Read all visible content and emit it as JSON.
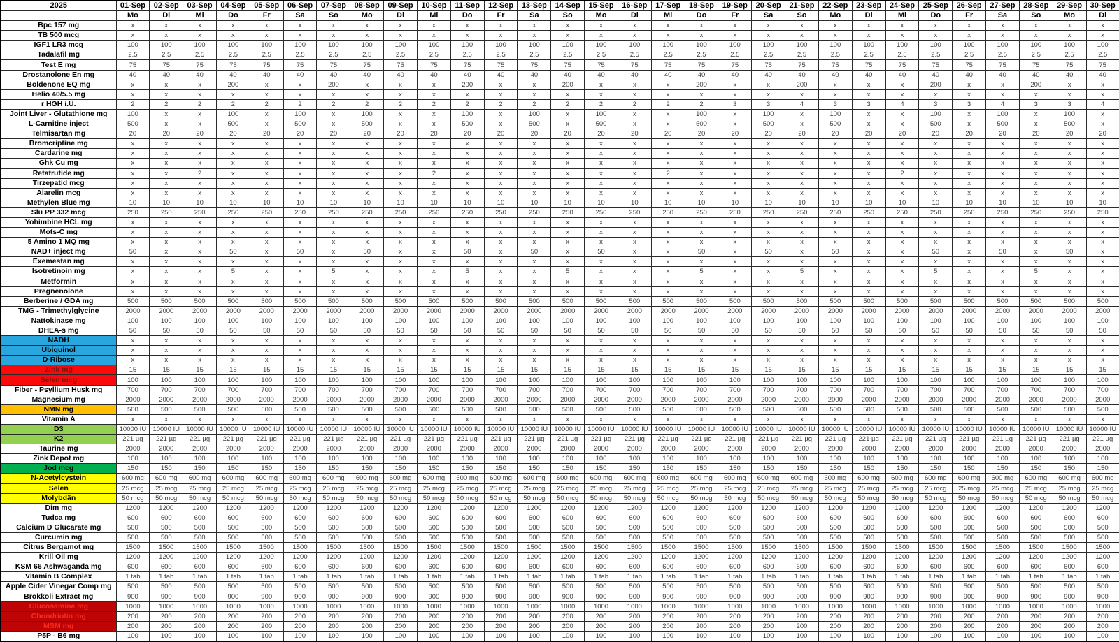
{
  "sheet": {
    "year_label": "2025",
    "columns": [
      {
        "date": "01-Sep",
        "day": "Mo"
      },
      {
        "date": "02-Sep",
        "day": "Di"
      },
      {
        "date": "03-Sep",
        "day": "Mi"
      },
      {
        "date": "04-Sep",
        "day": "Do"
      },
      {
        "date": "05-Sep",
        "day": "Fr"
      },
      {
        "date": "06-Sep",
        "day": "Sa"
      },
      {
        "date": "07-Sep",
        "day": "So"
      },
      {
        "date": "08-Sep",
        "day": "Mo"
      },
      {
        "date": "09-Sep",
        "day": "Di"
      },
      {
        "date": "10-Sep",
        "day": "Mi"
      },
      {
        "date": "11-Sep",
        "day": "Do"
      },
      {
        "date": "12-Sep",
        "day": "Fr"
      },
      {
        "date": "13-Sep",
        "day": "Sa"
      },
      {
        "date": "14-Sep",
        "day": "So"
      },
      {
        "date": "15-Sep",
        "day": "Mo"
      },
      {
        "date": "16-Sep",
        "day": "Di"
      },
      {
        "date": "17-Sep",
        "day": "Mi"
      },
      {
        "date": "18-Sep",
        "day": "Do"
      },
      {
        "date": "19-Sep",
        "day": "Fr"
      },
      {
        "date": "20-Sep",
        "day": "Sa"
      },
      {
        "date": "21-Sep",
        "day": "So"
      },
      {
        "date": "22-Sep",
        "day": "Mo"
      },
      {
        "date": "23-Sep",
        "day": "Di"
      },
      {
        "date": "24-Sep",
        "day": "Mi"
      },
      {
        "date": "25-Sep",
        "day": "Do"
      },
      {
        "date": "26-Sep",
        "day": "Fr"
      },
      {
        "date": "27-Sep",
        "day": "Sa"
      },
      {
        "date": "28-Sep",
        "day": "So"
      },
      {
        "date": "29-Sep",
        "day": "Mo"
      },
      {
        "date": "30-Sep",
        "day": "Di"
      }
    ],
    "rows": [
      {
        "label": "Bpc 157 mg",
        "all": "x"
      },
      {
        "label": "TB 500 mcg",
        "all": "x"
      },
      {
        "label": "IGF1 LR3 mcg",
        "all": "100"
      },
      {
        "label": "Tadalafil mg",
        "all": "2.5"
      },
      {
        "label": "Test E mg",
        "all": "75"
      },
      {
        "label": "Drostanolone En mg",
        "all": "40"
      },
      {
        "label": "Boldenone EQ mg",
        "values": [
          "x",
          "x",
          "x",
          "200",
          "x",
          "x",
          "200",
          "x",
          "x",
          "x",
          "200",
          "x",
          "x",
          "200",
          "x",
          "x",
          "x",
          "200",
          "x",
          "x",
          "200",
          "x",
          "x",
          "x",
          "200",
          "x",
          "x",
          "200",
          "x",
          "x"
        ]
      },
      {
        "label": "Helio 40/5.5 mg",
        "all": "x"
      },
      {
        "label": "r HGH i.U.",
        "values": [
          "2",
          "2",
          "2",
          "2",
          "2",
          "2",
          "2",
          "2",
          "2",
          "2",
          "2",
          "2",
          "2",
          "2",
          "2",
          "2",
          "2",
          "2",
          "3",
          "3",
          "4",
          "3",
          "3",
          "4",
          "3",
          "3",
          "4",
          "3",
          "3",
          "4"
        ]
      },
      {
        "label": "Joint Liver - Glutathione mg",
        "values": [
          "100",
          "x",
          "x",
          "100",
          "x",
          "100",
          "x",
          "100",
          "x",
          "x",
          "100",
          "x",
          "100",
          "x",
          "100",
          "x",
          "x",
          "100",
          "x",
          "100",
          "x",
          "100",
          "x",
          "x",
          "100",
          "x",
          "100",
          "x",
          "100",
          "x"
        ]
      },
      {
        "label": "L-Carnitine inject",
        "values": [
          "500",
          "x",
          "x",
          "500",
          "x",
          "500",
          "x",
          "500",
          "x",
          "x",
          "500",
          "x",
          "500",
          "x",
          "500",
          "x",
          "x",
          "500",
          "x",
          "500",
          "x",
          "500",
          "x",
          "x",
          "500",
          "x",
          "500",
          "x",
          "500",
          "x"
        ]
      },
      {
        "label": "Telmisartan mg",
        "all": "20"
      },
      {
        "label": "Bromcriptine mg",
        "all": "x"
      },
      {
        "label": "Cardarine mg",
        "all": "x"
      },
      {
        "label": "Ghk Cu mg",
        "all": "x"
      },
      {
        "label": "Retatrutide mg",
        "values": [
          "x",
          "x",
          "2",
          "x",
          "x",
          "x",
          "x",
          "x",
          "x",
          "2",
          "x",
          "x",
          "x",
          "x",
          "x",
          "x",
          "2",
          "x",
          "x",
          "x",
          "x",
          "x",
          "x",
          "2",
          "x",
          "x",
          "x",
          "x",
          "x",
          "x"
        ]
      },
      {
        "label": "Tirzepatid mcg",
        "all": "x"
      },
      {
        "label": "Alarelin mcg",
        "all": "x"
      },
      {
        "label": "Methylen Blue mg",
        "all": "10"
      },
      {
        "label": "Slu PP 332 mcg",
        "all": "250"
      },
      {
        "label": "Yohimbine HCL mg",
        "all": "x"
      },
      {
        "label": "Mots-C mg",
        "all": "x"
      },
      {
        "label": "5 Amino 1 MQ mg",
        "all": "x"
      },
      {
        "label": "NAD+ inject mg",
        "values": [
          "50",
          "x",
          "x",
          "50",
          "x",
          "50",
          "x",
          "50",
          "x",
          "x",
          "50",
          "x",
          "50",
          "x",
          "50",
          "x",
          "x",
          "50",
          "x",
          "50",
          "x",
          "50",
          "x",
          "x",
          "50",
          "x",
          "50",
          "x",
          "50",
          "x"
        ]
      },
      {
        "label": "Exemestan mg",
        "all": "x"
      },
      {
        "label": "Isotretinoin mg",
        "values": [
          "x",
          "x",
          "x",
          "5",
          "x",
          "x",
          "5",
          "x",
          "x",
          "x",
          "5",
          "x",
          "x",
          "5",
          "x",
          "x",
          "x",
          "5",
          "x",
          "x",
          "5",
          "x",
          "x",
          "x",
          "5",
          "x",
          "x",
          "5",
          "x",
          "x"
        ]
      },
      {
        "label": "Metformin",
        "all": "x"
      },
      {
        "label": "Pregnenolone",
        "all": "x"
      },
      {
        "label": "Berberine / GDA mg",
        "all": "500"
      },
      {
        "label": "TMG - Trimethylglycine",
        "all": "2000"
      },
      {
        "label": "Nattokinase mg",
        "all": "100"
      },
      {
        "label": "DHEA-s mg",
        "all": "50"
      },
      {
        "label": "NADH",
        "fill": "blue",
        "all": "x"
      },
      {
        "label": "Ubiquinol",
        "fill": "blue",
        "all": "x"
      },
      {
        "label": "D-Ribose",
        "fill": "blue",
        "all": "x"
      },
      {
        "label": "Zink mg",
        "fill": "red",
        "all": "15"
      },
      {
        "label": "Selen mcg",
        "fill": "red",
        "all": "100"
      },
      {
        "label": "Fiber - Psyllium Husk mg",
        "all": "700"
      },
      {
        "label": "Magnesium mg",
        "all": "2000"
      },
      {
        "label": "NMN mg",
        "fill": "orange",
        "all": "500"
      },
      {
        "label": "Vitamin A",
        "all": "x"
      },
      {
        "label": "D3",
        "fill": "light_green",
        "all": "10000 IU"
      },
      {
        "label": "K2",
        "fill": "light_green",
        "all": "221 µg"
      },
      {
        "label": "Taurine mg",
        "all": "2000"
      },
      {
        "label": "Zink Depot mg",
        "all": "100"
      },
      {
        "label": "Jod mcg",
        "fill": "green",
        "all": "150"
      },
      {
        "label": "N-Acetylcystein",
        "fill": "yellow",
        "all": "600 mg"
      },
      {
        "label": "Selen",
        "fill": "yellow",
        "all": "25 mcg"
      },
      {
        "label": "Molybdän",
        "fill": "yellow",
        "all": "50 mcg"
      },
      {
        "label": "Dim mg",
        "all": "1200"
      },
      {
        "label": "Tudca mg",
        "all": "600"
      },
      {
        "label": "Calcium D Glucarate mg",
        "all": "500"
      },
      {
        "label": "Curcumin mg",
        "all": "500"
      },
      {
        "label": "Citrus Bergamot mg",
        "all": "1500"
      },
      {
        "label": "Krill Oil mg",
        "all": "1200"
      },
      {
        "label": "KSM 66 Ashwaganda mg",
        "all": "600"
      },
      {
        "label": "Vitamin B Complex",
        "all": "1 tab"
      },
      {
        "label": "Apple Cider Vinegar Comp mg",
        "all": "500"
      },
      {
        "label": "Brokkoli Extract mg",
        "all": "900"
      },
      {
        "label": "Glucosamine mg",
        "fill": "dark_red",
        "all": "1000"
      },
      {
        "label": "Chondriotin mg",
        "fill": "dark_red",
        "all": "200"
      },
      {
        "label": "MSM mg",
        "fill": "dark_red",
        "all": "200"
      },
      {
        "label": "P5P - B6 mg",
        "all": "100"
      }
    ]
  },
  "colors": {
    "blue": {
      "bg": "#29A6DD",
      "text": "#000000"
    },
    "red": {
      "bg": "#FA0A0A",
      "text": "#7C130C"
    },
    "orange": {
      "bg": "#FFC000",
      "text": "#000000"
    },
    "light_green": {
      "bg": "#92D050",
      "text": "#000000"
    },
    "green": {
      "bg": "#00B050",
      "text": "#000000"
    },
    "yellow": {
      "bg": "#FFFF00",
      "text": "#000000"
    },
    "dark_red": {
      "bg": "#BE0404",
      "text": "#FB2C1E"
    },
    "grid_line": "#2b2b2b",
    "value_text": "#3f3f3f"
  }
}
